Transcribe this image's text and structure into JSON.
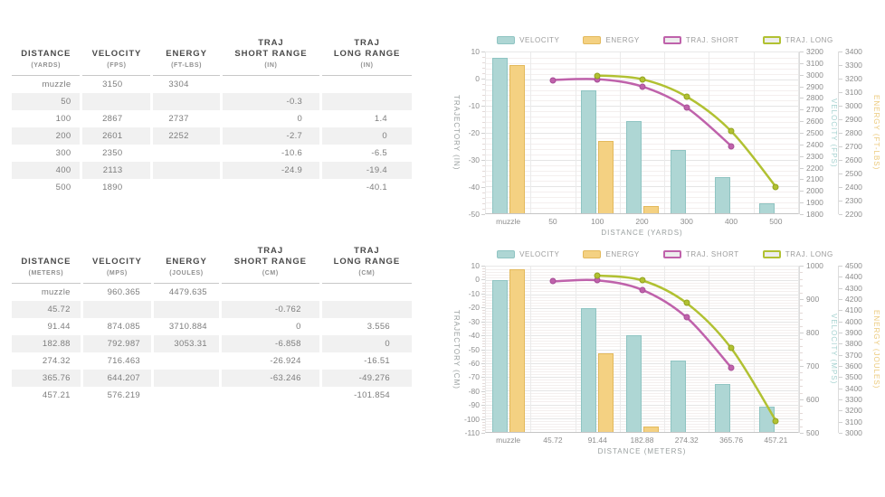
{
  "colors": {
    "series": {
      "velocity": {
        "fill": "#aed6d4",
        "border": "#8fc4c2",
        "title": "#a6d2d0"
      },
      "energy": {
        "fill": "#f4d182",
        "border": "#e3b95c",
        "title": "#ecca7c"
      },
      "traj_short": {
        "stroke": "#bf62ab",
        "marker": "#a74e97"
      },
      "traj_long": {
        "stroke": "#b1c132",
        "marker": "#93a31f"
      }
    },
    "axis_text": "#8d8d8d",
    "axis_title": "#9aa0a0",
    "grid_major": "#e5e5e5",
    "grid_minor": "#f4efee"
  },
  "tables": [
    {
      "name": "imperial",
      "columns": [
        {
          "lines": [
            "DISTANCE"
          ],
          "unit": "(YARDS)"
        },
        {
          "lines": [
            "VELOCITY"
          ],
          "unit": "(FPS)"
        },
        {
          "lines": [
            "ENERGY"
          ],
          "unit": "(FT-LBS)"
        },
        {
          "lines": [
            "TRAJ",
            "SHORT RANGE"
          ],
          "unit": "(IN)"
        },
        {
          "lines": [
            "TRAJ",
            "LONG RANGE"
          ],
          "unit": "(IN)"
        }
      ],
      "rows": [
        [
          "muzzle",
          "3150",
          "3304",
          "",
          ""
        ],
        [
          "50",
          "",
          "",
          "-0.3",
          ""
        ],
        [
          "100",
          "2867",
          "2737",
          "0",
          "1.4"
        ],
        [
          "200",
          "2601",
          "2252",
          "-2.7",
          "0"
        ],
        [
          "300",
          "2350",
          "",
          "-10.6",
          "-6.5"
        ],
        [
          "400",
          "2113",
          "",
          "-24.9",
          "-19.4"
        ],
        [
          "500",
          "1890",
          "",
          "",
          "-40.1"
        ]
      ]
    },
    {
      "name": "metric",
      "columns": [
        {
          "lines": [
            "DISTANCE"
          ],
          "unit": "(METERS)"
        },
        {
          "lines": [
            "VELOCITY"
          ],
          "unit": "(MPS)"
        },
        {
          "lines": [
            "ENERGY"
          ],
          "unit": "(JOULES)"
        },
        {
          "lines": [
            "TRAJ",
            "SHORT RANGE"
          ],
          "unit": "(CM)"
        },
        {
          "lines": [
            "TRAJ",
            "LONG RANGE"
          ],
          "unit": "(CM)"
        }
      ],
      "rows": [
        [
          "muzzle",
          "960.365",
          "4479.635",
          "",
          ""
        ],
        [
          "45.72",
          "",
          "",
          "-0.762",
          ""
        ],
        [
          "91.44",
          "874.085",
          "3710.884",
          "0",
          "3.556"
        ],
        [
          "182.88",
          "792.987",
          "3053.31",
          "-6.858",
          "0"
        ],
        [
          "274.32",
          "716.463",
          "",
          "-26.924",
          "-16.51"
        ],
        [
          "365.76",
          "644.207",
          "",
          "-63.246",
          "-49.276"
        ],
        [
          "457.21",
          "576.219",
          "",
          "",
          "-101.854"
        ]
      ]
    }
  ],
  "chart_data": [
    {
      "type": "bar",
      "title": "",
      "categories": [
        "muzzle",
        "50",
        "100",
        "200",
        "300",
        "400",
        "500"
      ],
      "xlabel": "DISTANCE (YARDS)",
      "legend_position": "top",
      "grid": true,
      "axes": [
        {
          "id": "trajectory",
          "side": "left",
          "title": "TRAJECTORY (IN)",
          "min": -50,
          "max": 10,
          "step": 10,
          "minor_div": 5
        },
        {
          "id": "velocity",
          "side": "right",
          "title": "VELOCITY (FPS)",
          "min": 1800,
          "max": 3200,
          "step": 100,
          "minor_div": 1,
          "color": "velocity"
        },
        {
          "id": "energy",
          "side": "right",
          "title": "ENERGY (FT-LBS)",
          "min": 2200,
          "max": 3400,
          "step": 100,
          "minor_div": 1,
          "color": "energy"
        }
      ],
      "series": [
        {
          "id": "velocity",
          "name": "VELOCITY",
          "kind": "bar",
          "axis": "velocity",
          "values": [
            3150,
            null,
            2867,
            2601,
            2350,
            2113,
            1890
          ]
        },
        {
          "id": "energy",
          "name": "ENERGY",
          "kind": "bar",
          "axis": "energy",
          "values": [
            3304,
            null,
            2737,
            2252,
            null,
            null,
            null
          ]
        },
        {
          "id": "traj_short",
          "name": "TRAJ. SHORT",
          "kind": "line",
          "axis": "trajectory",
          "values": [
            null,
            -0.3,
            0,
            -2.7,
            -10.6,
            -24.9,
            null
          ]
        },
        {
          "id": "traj_long",
          "name": "TRAJ. LONG",
          "kind": "line",
          "axis": "trajectory",
          "values": [
            null,
            null,
            1.4,
            0,
            -6.5,
            -19.4,
            -40.1
          ]
        }
      ]
    },
    {
      "type": "bar",
      "title": "",
      "categories": [
        "muzzle",
        "45.72",
        "91.44",
        "182.88",
        "274.32",
        "365.76",
        "457.21"
      ],
      "xlabel": "DISTANCE (METERS)",
      "legend_position": "top",
      "grid": true,
      "axes": [
        {
          "id": "trajectory",
          "side": "left",
          "title": "TRAJECTORY (CM)",
          "min": -110,
          "max": 10,
          "step": 10,
          "minor_div": 5
        },
        {
          "id": "velocity",
          "side": "right",
          "title": "VELOCITY (MPS)",
          "min": 500,
          "max": 1000,
          "step": 100,
          "minor_div": 5,
          "color": "velocity"
        },
        {
          "id": "energy",
          "side": "right",
          "title": "ENERGY (JOULES)",
          "min": 3000,
          "max": 4500,
          "step": 100,
          "minor_div": 1,
          "color": "energy"
        }
      ],
      "series": [
        {
          "id": "velocity",
          "name": "VELOCITY",
          "kind": "bar",
          "axis": "velocity",
          "values": [
            960.365,
            null,
            874.085,
            792.987,
            716.463,
            644.207,
            576.219
          ]
        },
        {
          "id": "energy",
          "name": "ENERGY",
          "kind": "bar",
          "axis": "energy",
          "values": [
            4479.635,
            null,
            3710.884,
            3053.31,
            null,
            null,
            null
          ]
        },
        {
          "id": "traj_short",
          "name": "TRAJ. SHORT",
          "kind": "line",
          "axis": "trajectory",
          "values": [
            null,
            -0.762,
            0,
            -6.858,
            -26.924,
            -63.246,
            null
          ]
        },
        {
          "id": "traj_long",
          "name": "TRAJ. LONG",
          "kind": "line",
          "axis": "trajectory",
          "values": [
            null,
            null,
            3.556,
            0,
            -16.51,
            -49.276,
            -101.854
          ]
        }
      ]
    }
  ]
}
